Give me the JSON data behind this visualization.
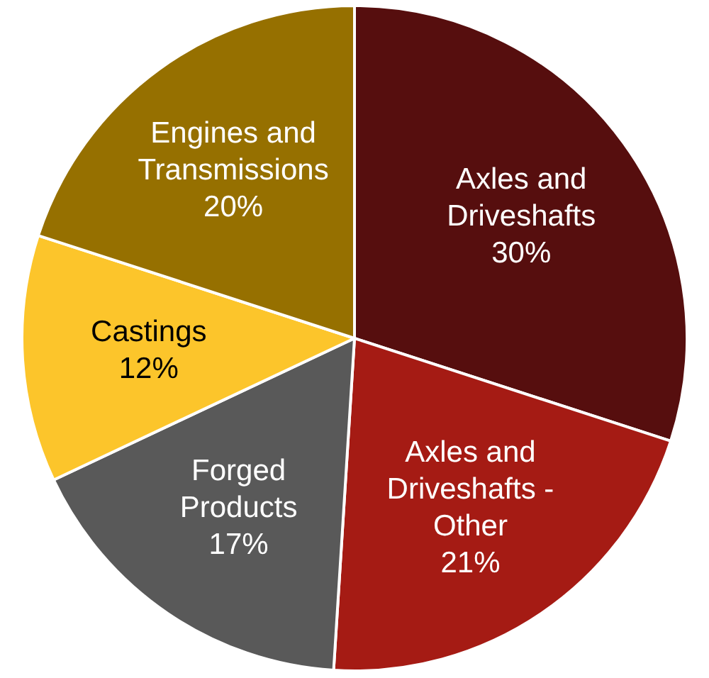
{
  "chart_data": {
    "type": "pie",
    "categories": [
      "Axles and Driveshafts",
      "Axles and Driveshafts - Other",
      "Forged Products",
      "Castings",
      "Engines and Transmissions"
    ],
    "values": [
      30,
      21,
      17,
      12,
      20
    ],
    "value_labels": [
      "30%",
      "21%",
      "17%",
      "12%",
      "20%"
    ],
    "colors": [
      "#560e0e",
      "#a51b14",
      "#595959",
      "#fcc52b",
      "#967000"
    ],
    "legend": false
  }
}
